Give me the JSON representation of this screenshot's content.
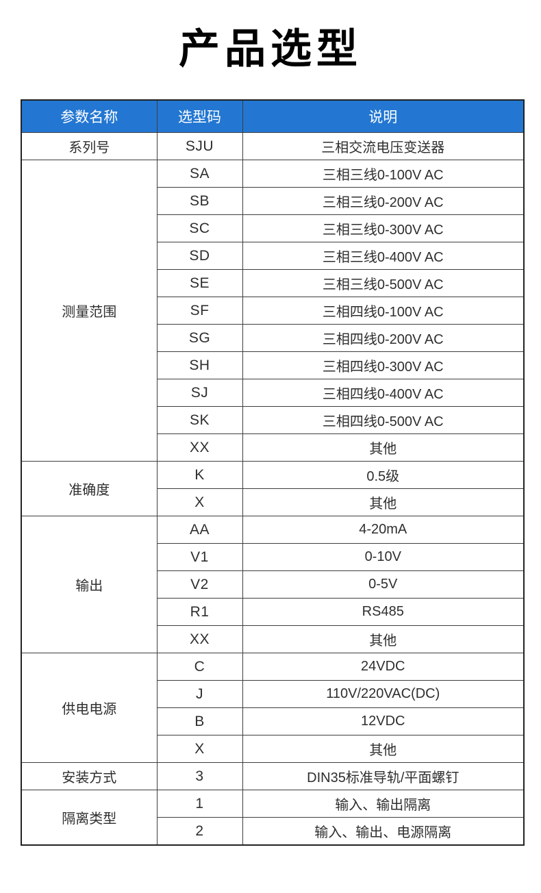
{
  "title": "产品选型",
  "colors": {
    "header_bg": "#2377d2",
    "header_text": "#ffffff",
    "body_text": "#2e2e2e",
    "border": "#3d3d3d",
    "title_text": "#000000"
  },
  "table": {
    "headers": [
      "参数名称",
      "选型码",
      "说明"
    ],
    "groups": [
      {
        "name": "系列号",
        "rows": [
          {
            "code": "SJU",
            "desc": "三相交流电压变送器"
          }
        ]
      },
      {
        "name": "测量范围",
        "rows": [
          {
            "code": "SA",
            "desc": "三相三线0-100V AC"
          },
          {
            "code": "SB",
            "desc": "三相三线0-200V AC"
          },
          {
            "code": "SC",
            "desc": "三相三线0-300V AC"
          },
          {
            "code": "SD",
            "desc": "三相三线0-400V AC"
          },
          {
            "code": "SE",
            "desc": "三相三线0-500V AC"
          },
          {
            "code": "SF",
            "desc": "三相四线0-100V AC"
          },
          {
            "code": "SG",
            "desc": "三相四线0-200V AC"
          },
          {
            "code": "SH",
            "desc": "三相四线0-300V AC"
          },
          {
            "code": "SJ",
            "desc": "三相四线0-400V AC"
          },
          {
            "code": "SK",
            "desc": "三相四线0-500V AC"
          },
          {
            "code": "XX",
            "desc": "其他"
          }
        ]
      },
      {
        "name": "准确度",
        "rows": [
          {
            "code": "K",
            "desc": "0.5级"
          },
          {
            "code": "X",
            "desc": "其他"
          }
        ]
      },
      {
        "name": "输出",
        "rows": [
          {
            "code": "AA",
            "desc": "4-20mA"
          },
          {
            "code": "V1",
            "desc": "0-10V"
          },
          {
            "code": "V2",
            "desc": "0-5V"
          },
          {
            "code": "R1",
            "desc": "RS485"
          },
          {
            "code": "XX",
            "desc": "其他"
          }
        ]
      },
      {
        "name": "供电电源",
        "rows": [
          {
            "code": "C",
            "desc": "24VDC"
          },
          {
            "code": "J",
            "desc": "110V/220VAC(DC)"
          },
          {
            "code": "B",
            "desc": "12VDC"
          },
          {
            "code": "X",
            "desc": "其他"
          }
        ]
      },
      {
        "name": "安装方式",
        "rows": [
          {
            "code": "3",
            "desc": "DIN35标准导轨/平面螺钉"
          }
        ]
      },
      {
        "name": "隔离类型",
        "rows": [
          {
            "code": "1",
            "desc": "输入、输出隔离"
          },
          {
            "code": "2",
            "desc": "输入、输出、电源隔离"
          }
        ]
      }
    ]
  }
}
